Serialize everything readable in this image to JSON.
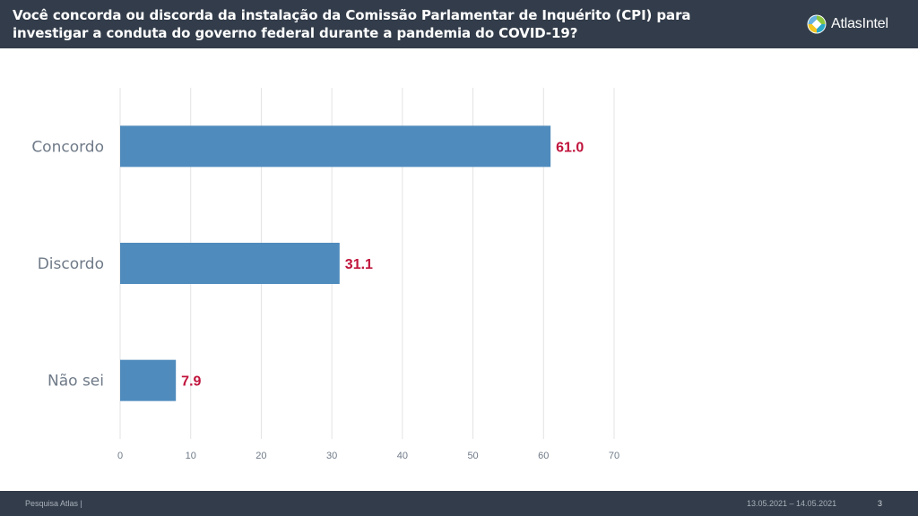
{
  "header": {
    "title_line1": "Você concorda ou discorda da instalação da Comissão Parlamentar de Inquérito (CPI) para",
    "title_line2": "investigar a conduta do governo federal durante a pandemia do COVID-19?",
    "logo_text": "AtlasIntel",
    "logo_icon": "atlasintel-logo-icon"
  },
  "chart_data": {
    "type": "bar",
    "orientation": "horizontal",
    "categories": [
      "Concordo",
      "Discordo",
      "Não sei"
    ],
    "values": [
      61.0,
      31.1,
      7.9
    ],
    "value_labels": [
      "61.0",
      "31.1",
      "7.9"
    ],
    "xlim": [
      0,
      70
    ],
    "x_ticks": [
      0,
      10,
      20,
      30,
      40,
      50,
      60,
      70
    ],
    "grid": true,
    "bar_color": "#4f8bbd",
    "label_color": "#c0143c"
  },
  "footer": {
    "source": "Pesquisa Atlas  |",
    "date_range": "13.05.2021 – 14.05.2021",
    "page_number": "3"
  }
}
